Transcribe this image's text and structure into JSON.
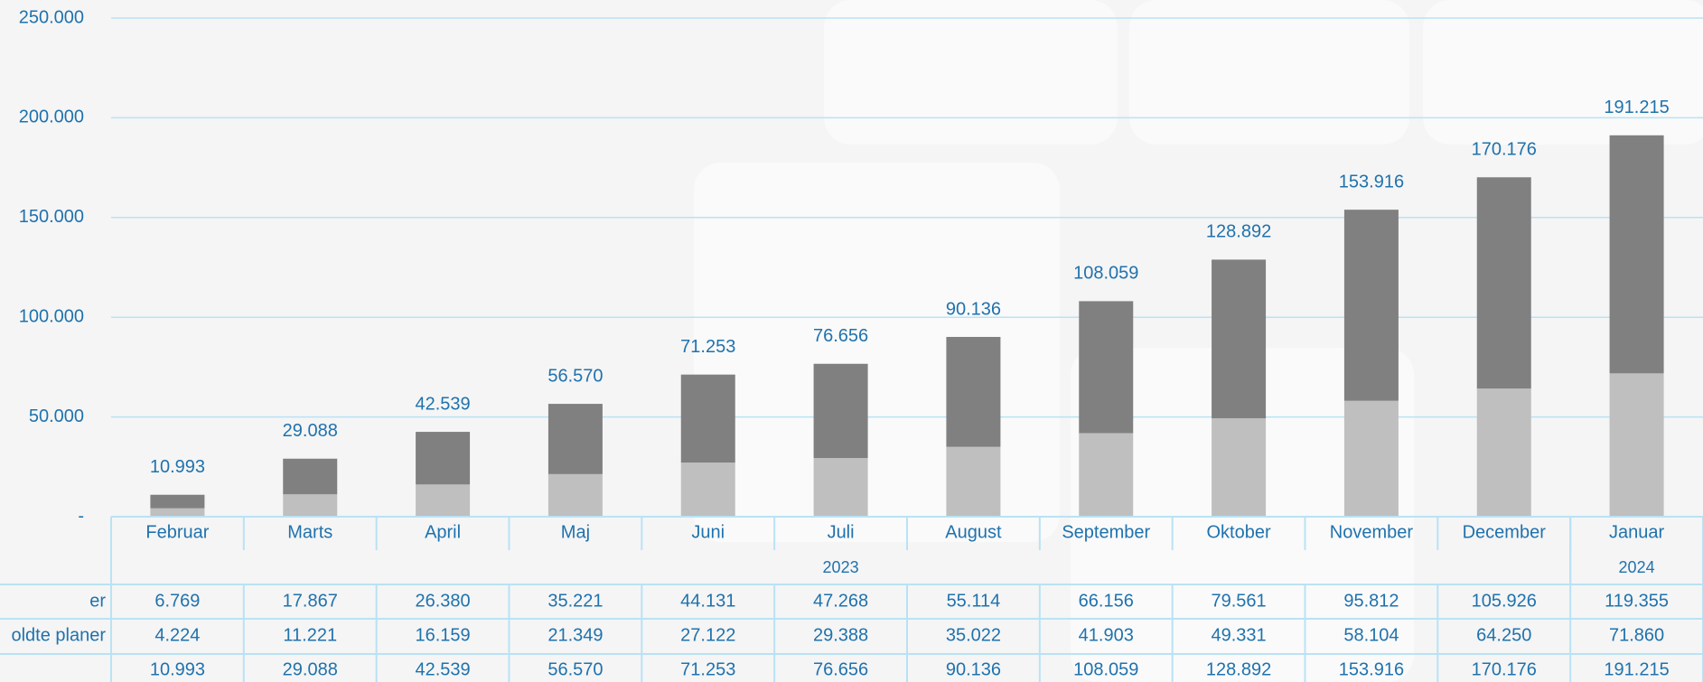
{
  "chart_data": {
    "type": "stacked_bar",
    "categories": [
      "Februar",
      "Marts",
      "April",
      "Maj",
      "Juni",
      "Juli",
      "August",
      "September",
      "Oktober",
      "November",
      "December",
      "Januar"
    ],
    "x_groups": [
      {
        "label": "2023",
        "count": 11
      },
      {
        "label": "2024",
        "count": 1
      }
    ],
    "series": [
      {
        "name": "oldte planer",
        "color": "#bfbfbf",
        "values": [
          4224,
          11221,
          16159,
          21349,
          27122,
          29388,
          35022,
          41903,
          49331,
          58104,
          64250,
          71860
        ],
        "value_labels": [
          "4.224",
          "11.221",
          "16.159",
          "21.349",
          "27.122",
          "29.388",
          "35.022",
          "41.903",
          "49.331",
          "58.104",
          "64.250",
          "71.860"
        ]
      },
      {
        "name": "er",
        "color": "#808080",
        "values": [
          6769,
          17867,
          26380,
          35221,
          44131,
          47268,
          55114,
          66156,
          79561,
          95812,
          105926,
          119355
        ],
        "value_labels": [
          "6.769",
          "17.867",
          "26.380",
          "35.221",
          "44.131",
          "47.268",
          "55.114",
          "66.156",
          "79.561",
          "95.812",
          "105.926",
          "119.355"
        ]
      }
    ],
    "totals": {
      "values": [
        10993,
        29088,
        42539,
        56570,
        71253,
        76656,
        90136,
        108059,
        128892,
        153916,
        170176,
        191215
      ],
      "value_labels": [
        "10.993",
        "29.088",
        "42.539",
        "56.570",
        "71.253",
        "76.656",
        "90.136",
        "108.059",
        "128.892",
        "153.916",
        "170.176",
        "191.215"
      ]
    },
    "ylim": [
      0,
      250000
    ],
    "yticks": [
      {
        "value": 0,
        "label": "-"
      },
      {
        "value": 50000,
        "label": "50.000"
      },
      {
        "value": 100000,
        "label": "100.000"
      },
      {
        "value": 150000,
        "label": "150.000"
      },
      {
        "value": 200000,
        "label": "200.000"
      },
      {
        "value": 250000,
        "label": "250.000"
      }
    ],
    "grid": true
  }
}
